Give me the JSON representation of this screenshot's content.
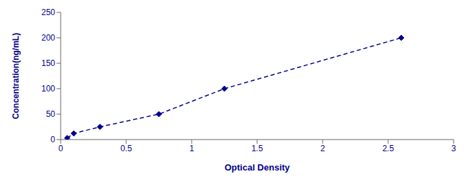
{
  "chart_data": {
    "type": "line",
    "xlabel": "Optical Density",
    "ylabel": "Concentration(ng/mL)",
    "x": [
      0.05,
      0.1,
      0.3,
      0.75,
      1.25,
      2.6
    ],
    "values": [
      3,
      12,
      25,
      50,
      100,
      200
    ],
    "color": "#00008B",
    "marker": "diamond",
    "line_style": "dashed",
    "xlim": [
      0,
      3
    ],
    "ylim": [
      0,
      250
    ],
    "xticks": [
      0,
      0.5,
      1,
      1.5,
      2,
      2.5,
      3
    ],
    "yticks": [
      0,
      50,
      100,
      150,
      200,
      250
    ],
    "grid": false
  }
}
